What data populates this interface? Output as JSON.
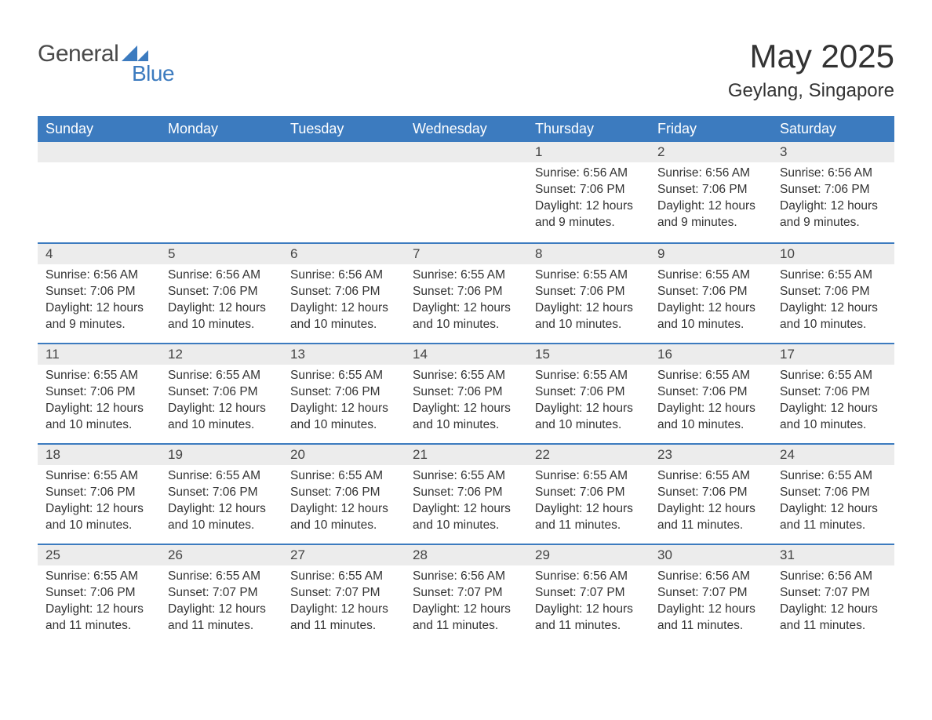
{
  "brand": {
    "word1": "General",
    "word2": "Blue",
    "word1_color": "#4a4a4a",
    "word2_color": "#3c7bbf",
    "mark_color": "#3c7bbf"
  },
  "header": {
    "month_title": "May 2025",
    "location": "Geylang, Singapore",
    "title_fontsize": 42,
    "location_fontsize": 24,
    "text_color": "#333333"
  },
  "calendar": {
    "type": "table",
    "header_bg": "#3c7bbf",
    "header_text_color": "#ffffff",
    "daynum_bg": "#ececec",
    "row_divider_color": "#3c7bbf",
    "body_text_color": "#333333",
    "background_color": "#ffffff",
    "header_fontsize": 18,
    "daynum_fontsize": 17,
    "body_fontsize": 15.5,
    "day_headers": [
      "Sunday",
      "Monday",
      "Tuesday",
      "Wednesday",
      "Thursday",
      "Friday",
      "Saturday"
    ],
    "weeks": [
      [
        null,
        null,
        null,
        null,
        {
          "num": "1",
          "sunrise": "Sunrise: 6:56 AM",
          "sunset": "Sunset: 7:06 PM",
          "dl1": "Daylight: 12 hours",
          "dl2": "and 9 minutes."
        },
        {
          "num": "2",
          "sunrise": "Sunrise: 6:56 AM",
          "sunset": "Sunset: 7:06 PM",
          "dl1": "Daylight: 12 hours",
          "dl2": "and 9 minutes."
        },
        {
          "num": "3",
          "sunrise": "Sunrise: 6:56 AM",
          "sunset": "Sunset: 7:06 PM",
          "dl1": "Daylight: 12 hours",
          "dl2": "and 9 minutes."
        }
      ],
      [
        {
          "num": "4",
          "sunrise": "Sunrise: 6:56 AM",
          "sunset": "Sunset: 7:06 PM",
          "dl1": "Daylight: 12 hours",
          "dl2": "and 9 minutes."
        },
        {
          "num": "5",
          "sunrise": "Sunrise: 6:56 AM",
          "sunset": "Sunset: 7:06 PM",
          "dl1": "Daylight: 12 hours",
          "dl2": "and 10 minutes."
        },
        {
          "num": "6",
          "sunrise": "Sunrise: 6:56 AM",
          "sunset": "Sunset: 7:06 PM",
          "dl1": "Daylight: 12 hours",
          "dl2": "and 10 minutes."
        },
        {
          "num": "7",
          "sunrise": "Sunrise: 6:55 AM",
          "sunset": "Sunset: 7:06 PM",
          "dl1": "Daylight: 12 hours",
          "dl2": "and 10 minutes."
        },
        {
          "num": "8",
          "sunrise": "Sunrise: 6:55 AM",
          "sunset": "Sunset: 7:06 PM",
          "dl1": "Daylight: 12 hours",
          "dl2": "and 10 minutes."
        },
        {
          "num": "9",
          "sunrise": "Sunrise: 6:55 AM",
          "sunset": "Sunset: 7:06 PM",
          "dl1": "Daylight: 12 hours",
          "dl2": "and 10 minutes."
        },
        {
          "num": "10",
          "sunrise": "Sunrise: 6:55 AM",
          "sunset": "Sunset: 7:06 PM",
          "dl1": "Daylight: 12 hours",
          "dl2": "and 10 minutes."
        }
      ],
      [
        {
          "num": "11",
          "sunrise": "Sunrise: 6:55 AM",
          "sunset": "Sunset: 7:06 PM",
          "dl1": "Daylight: 12 hours",
          "dl2": "and 10 minutes."
        },
        {
          "num": "12",
          "sunrise": "Sunrise: 6:55 AM",
          "sunset": "Sunset: 7:06 PM",
          "dl1": "Daylight: 12 hours",
          "dl2": "and 10 minutes."
        },
        {
          "num": "13",
          "sunrise": "Sunrise: 6:55 AM",
          "sunset": "Sunset: 7:06 PM",
          "dl1": "Daylight: 12 hours",
          "dl2": "and 10 minutes."
        },
        {
          "num": "14",
          "sunrise": "Sunrise: 6:55 AM",
          "sunset": "Sunset: 7:06 PM",
          "dl1": "Daylight: 12 hours",
          "dl2": "and 10 minutes."
        },
        {
          "num": "15",
          "sunrise": "Sunrise: 6:55 AM",
          "sunset": "Sunset: 7:06 PM",
          "dl1": "Daylight: 12 hours",
          "dl2": "and 10 minutes."
        },
        {
          "num": "16",
          "sunrise": "Sunrise: 6:55 AM",
          "sunset": "Sunset: 7:06 PM",
          "dl1": "Daylight: 12 hours",
          "dl2": "and 10 minutes."
        },
        {
          "num": "17",
          "sunrise": "Sunrise: 6:55 AM",
          "sunset": "Sunset: 7:06 PM",
          "dl1": "Daylight: 12 hours",
          "dl2": "and 10 minutes."
        }
      ],
      [
        {
          "num": "18",
          "sunrise": "Sunrise: 6:55 AM",
          "sunset": "Sunset: 7:06 PM",
          "dl1": "Daylight: 12 hours",
          "dl2": "and 10 minutes."
        },
        {
          "num": "19",
          "sunrise": "Sunrise: 6:55 AM",
          "sunset": "Sunset: 7:06 PM",
          "dl1": "Daylight: 12 hours",
          "dl2": "and 10 minutes."
        },
        {
          "num": "20",
          "sunrise": "Sunrise: 6:55 AM",
          "sunset": "Sunset: 7:06 PM",
          "dl1": "Daylight: 12 hours",
          "dl2": "and 10 minutes."
        },
        {
          "num": "21",
          "sunrise": "Sunrise: 6:55 AM",
          "sunset": "Sunset: 7:06 PM",
          "dl1": "Daylight: 12 hours",
          "dl2": "and 10 minutes."
        },
        {
          "num": "22",
          "sunrise": "Sunrise: 6:55 AM",
          "sunset": "Sunset: 7:06 PM",
          "dl1": "Daylight: 12 hours",
          "dl2": "and 11 minutes."
        },
        {
          "num": "23",
          "sunrise": "Sunrise: 6:55 AM",
          "sunset": "Sunset: 7:06 PM",
          "dl1": "Daylight: 12 hours",
          "dl2": "and 11 minutes."
        },
        {
          "num": "24",
          "sunrise": "Sunrise: 6:55 AM",
          "sunset": "Sunset: 7:06 PM",
          "dl1": "Daylight: 12 hours",
          "dl2": "and 11 minutes."
        }
      ],
      [
        {
          "num": "25",
          "sunrise": "Sunrise: 6:55 AM",
          "sunset": "Sunset: 7:06 PM",
          "dl1": "Daylight: 12 hours",
          "dl2": "and 11 minutes."
        },
        {
          "num": "26",
          "sunrise": "Sunrise: 6:55 AM",
          "sunset": "Sunset: 7:07 PM",
          "dl1": "Daylight: 12 hours",
          "dl2": "and 11 minutes."
        },
        {
          "num": "27",
          "sunrise": "Sunrise: 6:55 AM",
          "sunset": "Sunset: 7:07 PM",
          "dl1": "Daylight: 12 hours",
          "dl2": "and 11 minutes."
        },
        {
          "num": "28",
          "sunrise": "Sunrise: 6:56 AM",
          "sunset": "Sunset: 7:07 PM",
          "dl1": "Daylight: 12 hours",
          "dl2": "and 11 minutes."
        },
        {
          "num": "29",
          "sunrise": "Sunrise: 6:56 AM",
          "sunset": "Sunset: 7:07 PM",
          "dl1": "Daylight: 12 hours",
          "dl2": "and 11 minutes."
        },
        {
          "num": "30",
          "sunrise": "Sunrise: 6:56 AM",
          "sunset": "Sunset: 7:07 PM",
          "dl1": "Daylight: 12 hours",
          "dl2": "and 11 minutes."
        },
        {
          "num": "31",
          "sunrise": "Sunrise: 6:56 AM",
          "sunset": "Sunset: 7:07 PM",
          "dl1": "Daylight: 12 hours",
          "dl2": "and 11 minutes."
        }
      ]
    ]
  }
}
